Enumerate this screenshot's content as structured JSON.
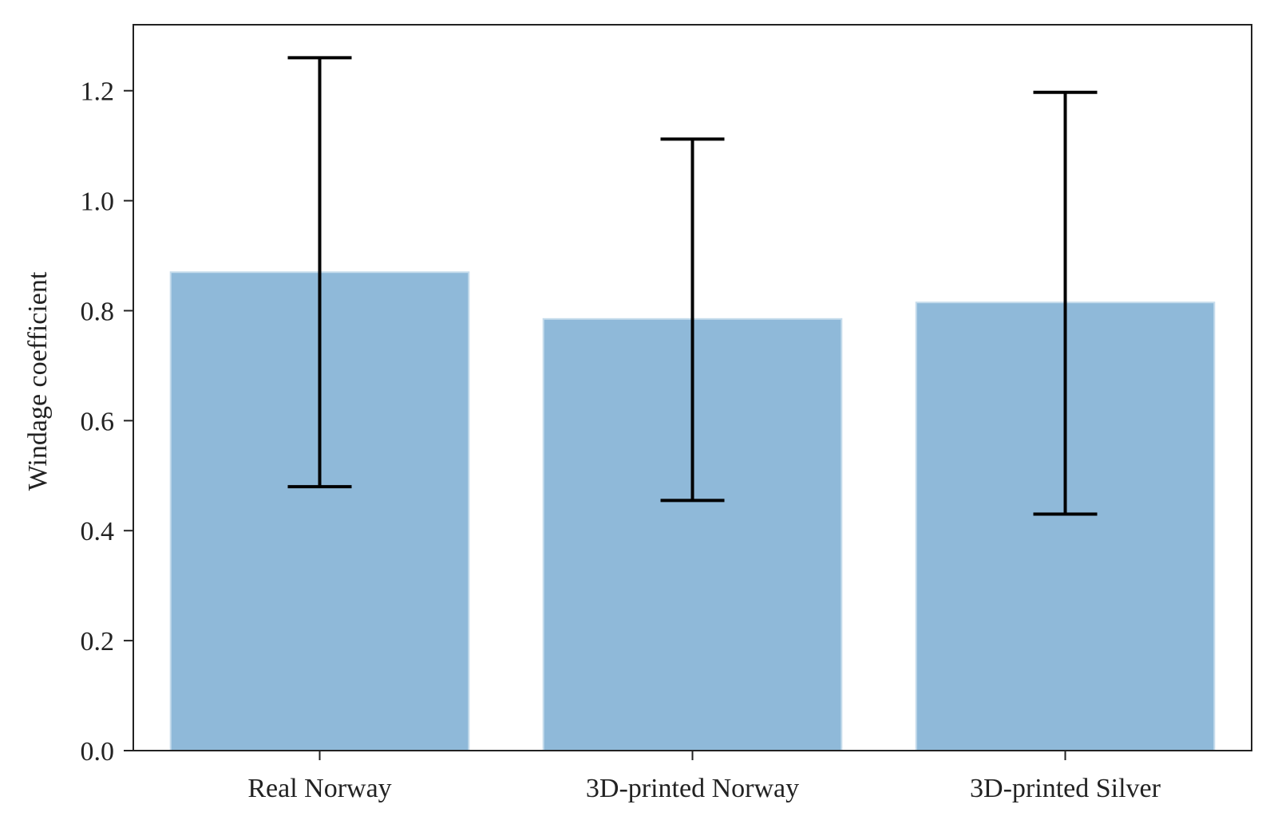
{
  "chart_data": {
    "type": "bar",
    "title": "",
    "xlabel": "",
    "ylabel": "Windage coefficient",
    "categories": [
      "Real Norway",
      "3D-printed Norway",
      "3D-printed Silver"
    ],
    "values": [
      0.87,
      0.785,
      0.815
    ],
    "error_low": [
      0.48,
      0.455,
      0.43
    ],
    "error_high": [
      1.26,
      1.112,
      1.197
    ],
    "ylim": [
      0,
      1.32
    ],
    "yticks": [
      0.0,
      0.2,
      0.4,
      0.6,
      0.8,
      1.0,
      1.2
    ],
    "ytick_labels": [
      "0.0",
      "0.2",
      "0.4",
      "0.6",
      "0.8",
      "1.0",
      "1.2"
    ],
    "grid": false,
    "bar_color": "#8fb9d9",
    "bar_edge_color": "#c6dcec",
    "error_color": "#000000",
    "axis_color": "#222222"
  }
}
